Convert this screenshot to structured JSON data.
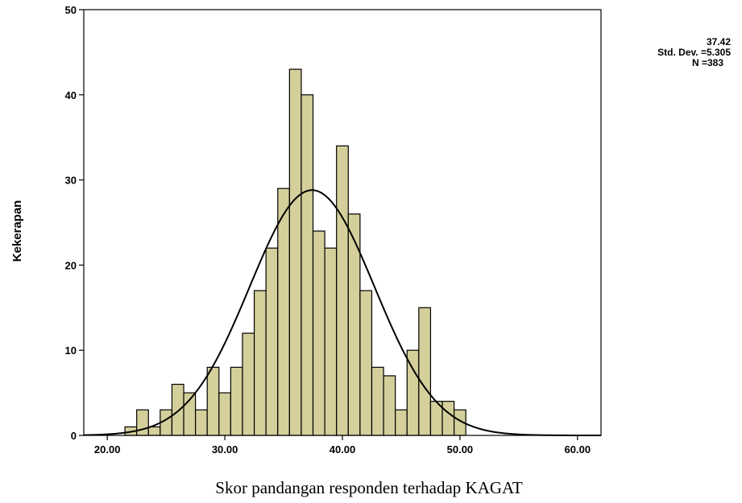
{
  "chart_data": {
    "type": "bar",
    "xlabel": "Skor pandangan responden terhadap KAGAT",
    "ylabel": "Kekerapan",
    "xlim": [
      18,
      62
    ],
    "ylim": [
      0,
      50
    ],
    "x_ticks": [
      "20.00",
      "30.00",
      "40.00",
      "50.00",
      "60.00"
    ],
    "x_tick_values": [
      20,
      30,
      40,
      50,
      60
    ],
    "y_ticks": [
      "0",
      "10",
      "20",
      "30",
      "40",
      "50"
    ],
    "y_tick_values": [
      0,
      10,
      20,
      30,
      40,
      50
    ],
    "bin_width": 1,
    "bin_centers": [
      22,
      23,
      24,
      25,
      26,
      27,
      28,
      29,
      30,
      31,
      32,
      33,
      34,
      35,
      36,
      37,
      38,
      39,
      40,
      41,
      42,
      43,
      44,
      45,
      46,
      47,
      48,
      49,
      50
    ],
    "values": [
      1,
      3,
      1,
      3,
      6,
      5,
      3,
      8,
      5,
      8,
      12,
      17,
      22,
      29,
      43,
      40,
      24,
      22,
      34,
      26,
      17,
      8,
      7,
      3,
      10,
      15,
      4,
      4,
      3
    ],
    "series": [
      {
        "type": "normal-curve",
        "mean": 37.42,
        "std_dev": 5.305,
        "n": 383
      }
    ],
    "stats": {
      "mean_text": "37.42",
      "std_text": "Std. Dev. =5.305",
      "n_text": "N =383"
    },
    "colors": {
      "bar_fill": "#d4cf9b",
      "bar_stroke": "#000000",
      "curve": "#000000"
    },
    "grid": false
  }
}
